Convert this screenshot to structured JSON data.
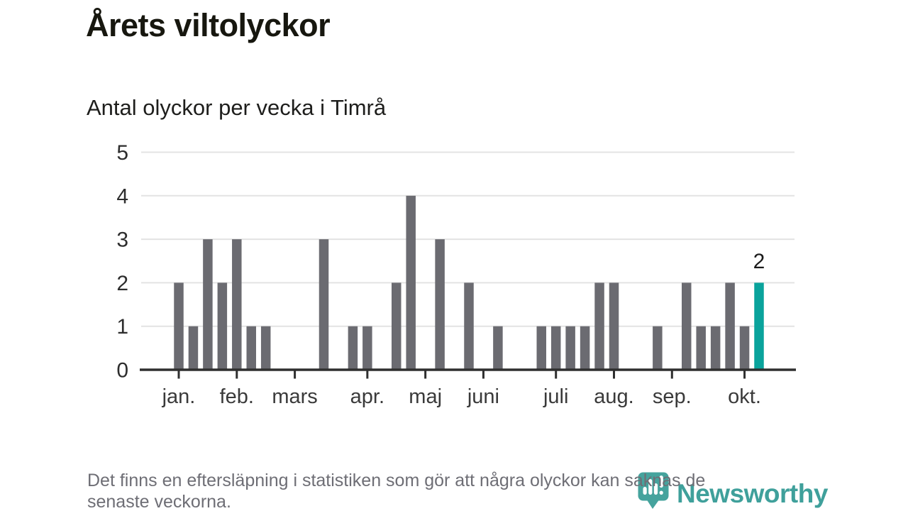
{
  "header": {
    "title": "Årets viltolyckor",
    "subtitle": "Antal olyckor per vecka i Timrå"
  },
  "chart_data": {
    "type": "bar",
    "title": "Årets viltolyckor",
    "subtitle": "Antal olyckor per vecka i Timrå",
    "x_unit": "vecka",
    "first_week": 1,
    "values": [
      2,
      1,
      3,
      2,
      3,
      1,
      1,
      0,
      0,
      0,
      3,
      0,
      1,
      1,
      0,
      2,
      4,
      0,
      3,
      0,
      2,
      0,
      1,
      0,
      0,
      1,
      1,
      1,
      1,
      2,
      2,
      0,
      0,
      1,
      0,
      2,
      1,
      1,
      2,
      1,
      2
    ],
    "highlight_last": true,
    "last_value_label": "2",
    "ylim": [
      0,
      5
    ],
    "yticks": [
      0,
      1,
      2,
      3,
      4,
      5
    ],
    "month_ticks": [
      {
        "label": "jan.",
        "week": 1
      },
      {
        "label": "feb.",
        "week": 5
      },
      {
        "label": "mars",
        "week": 9
      },
      {
        "label": "apr.",
        "week": 14
      },
      {
        "label": "maj",
        "week": 18
      },
      {
        "label": "juni",
        "week": 22
      },
      {
        "label": "juli",
        "week": 27
      },
      {
        "label": "aug.",
        "week": 31
      },
      {
        "label": "sep.",
        "week": 35
      },
      {
        "label": "okt.",
        "week": 40
      }
    ],
    "grid": true,
    "legend_position": "none",
    "colors": {
      "bar": "#6b6b71",
      "highlight": "#0aa39c",
      "grid": "#e3e3e3",
      "axis": "#2f2f2f",
      "y_label": "#2d2d2d",
      "x_label": "#3a3a3a",
      "value_label": "#1b1b1b"
    }
  },
  "footer": {
    "lines": [
      "Det finns en eftersläpning i statistiken som gör att några olyckor kan saknas de",
      "senaste veckorna."
    ]
  },
  "logo": {
    "name": "Newsworthy",
    "color": "#3fa09b",
    "icon_color": "#45a39d",
    "icon": "newsworthy-speech-bubble-chart-icon"
  }
}
